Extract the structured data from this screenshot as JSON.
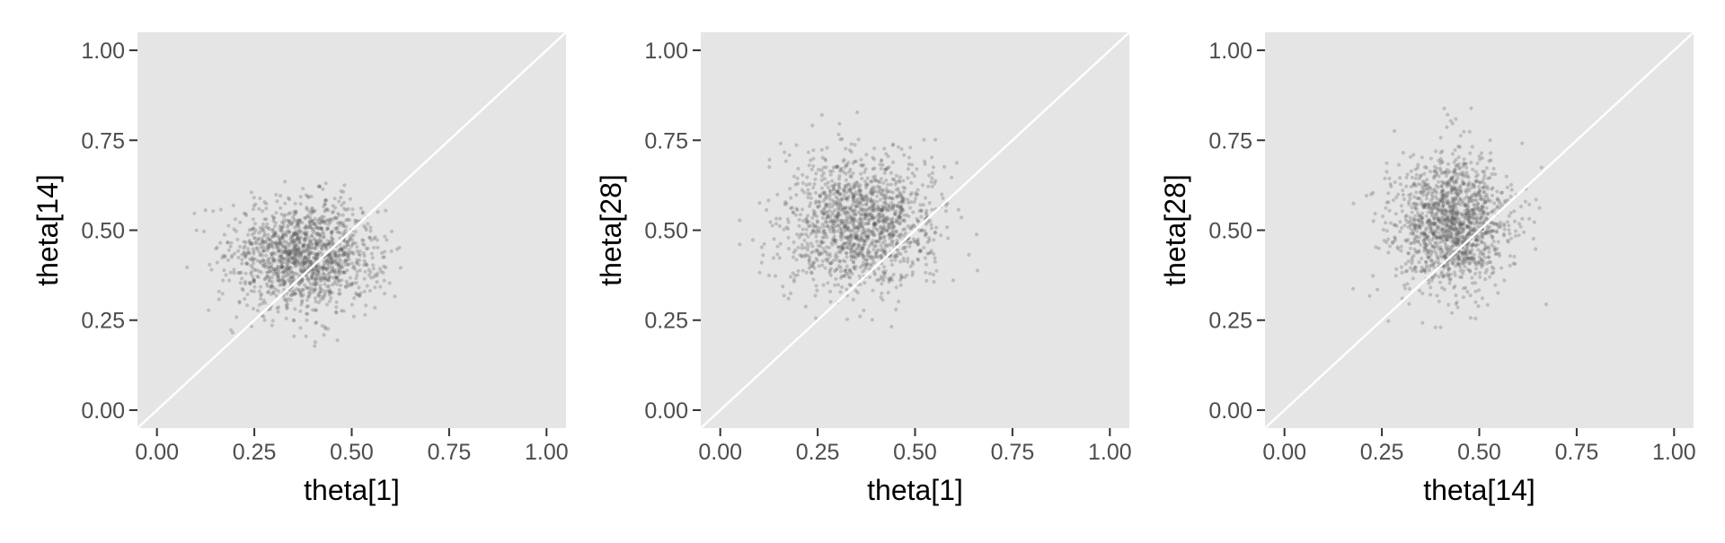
{
  "colors": {
    "panel_background": "#e5e5e5",
    "gridline": "#ffffff",
    "reference_line": "#ffffff",
    "point": "#595959",
    "tick_mark": "#333333",
    "tick_label": "#4d4d4d"
  },
  "chart_data": [
    {
      "type": "scatter",
      "xlabel": "theta[1]",
      "ylabel": "theta[14]",
      "xlim": [
        0,
        1
      ],
      "ylim": [
        0,
        1
      ],
      "xticks": [
        "0.00",
        "0.25",
        "0.50",
        "0.75",
        "1.00"
      ],
      "yticks": [
        "0.00",
        "0.25",
        "0.50",
        "0.75",
        "1.00"
      ],
      "reference_line": "y = x",
      "grid": false,
      "point_cloud": {
        "n": 1400,
        "mean": [
          0.38,
          0.43
        ],
        "sd": [
          0.095,
          0.075
        ],
        "x_range": [
          0.05,
          0.66
        ],
        "y_range": [
          0.11,
          0.73
        ]
      }
    },
    {
      "type": "scatter",
      "xlabel": "theta[1]",
      "ylabel": "theta[28]",
      "xlim": [
        0,
        1
      ],
      "ylim": [
        0,
        1
      ],
      "xticks": [
        "0.00",
        "0.25",
        "0.50",
        "0.75",
        "1.00"
      ],
      "yticks": [
        "0.00",
        "0.25",
        "0.50",
        "0.75",
        "1.00"
      ],
      "reference_line": "y = x",
      "grid": false,
      "point_cloud": {
        "n": 1400,
        "mean": [
          0.36,
          0.52
        ],
        "sd": [
          0.095,
          0.095
        ],
        "x_range": [
          0.05,
          0.66
        ],
        "y_range": [
          0.23,
          0.91
        ]
      }
    },
    {
      "type": "scatter",
      "xlabel": "theta[14]",
      "ylabel": "theta[28]",
      "xlim": [
        0,
        1
      ],
      "ylim": [
        0,
        1
      ],
      "xticks": [
        "0.00",
        "0.25",
        "0.50",
        "0.75",
        "1.00"
      ],
      "yticks": [
        "0.00",
        "0.25",
        "0.50",
        "0.75",
        "1.00"
      ],
      "reference_line": "y = x",
      "grid": false,
      "point_cloud": {
        "n": 1400,
        "mean": [
          0.43,
          0.52
        ],
        "sd": [
          0.075,
          0.095
        ],
        "x_range": [
          0.11,
          0.73
        ],
        "y_range": [
          0.23,
          0.91
        ]
      }
    }
  ]
}
